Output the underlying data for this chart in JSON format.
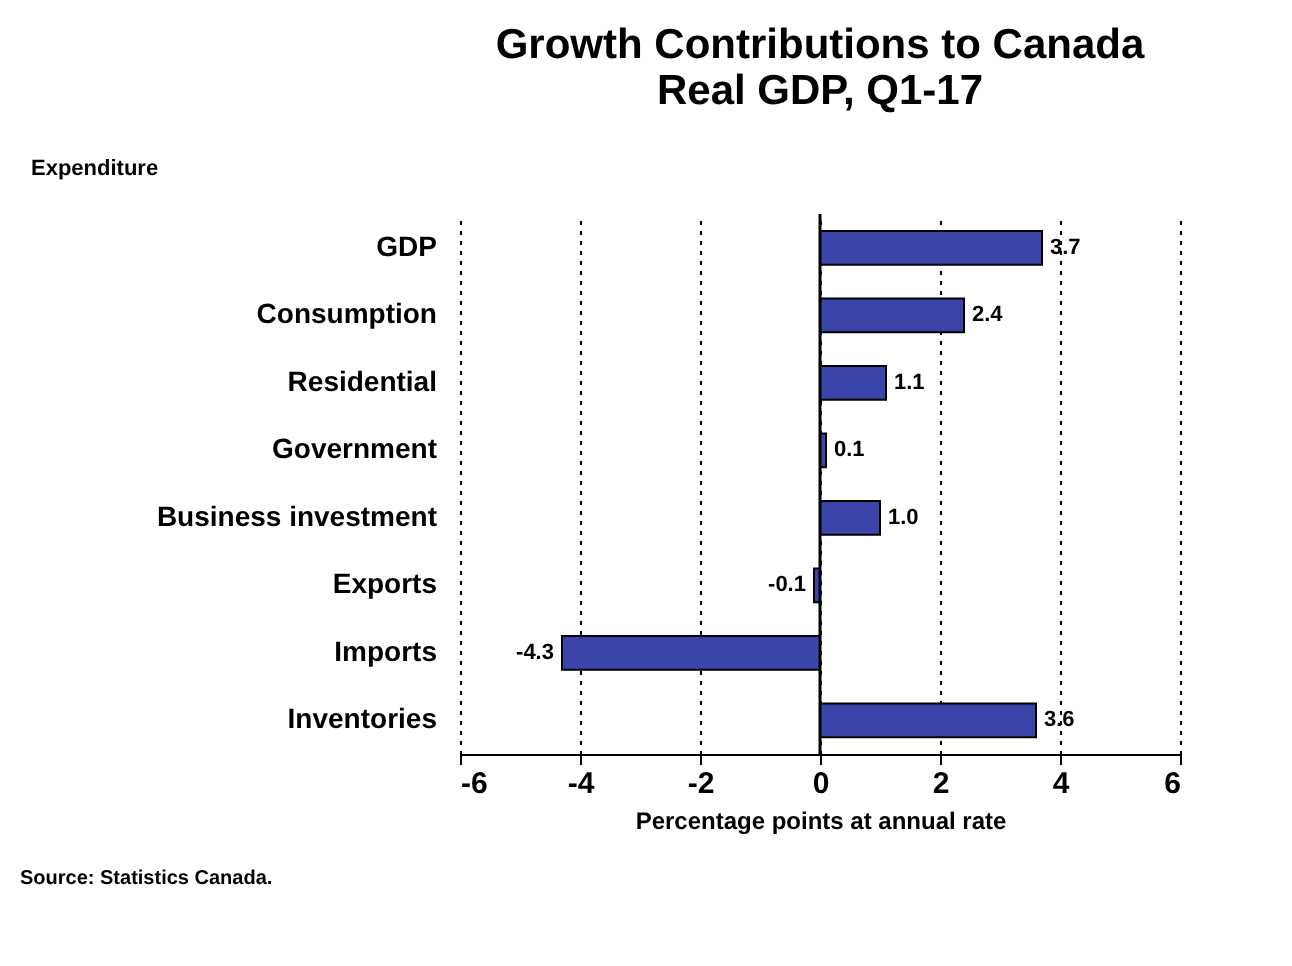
{
  "chart_data": {
    "type": "bar",
    "orientation": "horizontal",
    "title": "Growth Contributions to Canada\nReal GDP, Q1-17",
    "ylabel": "Expenditure",
    "xlabel": "Percentage points at annual rate",
    "categories": [
      "GDP",
      "Consumption",
      "Residential",
      "Government",
      "Business investment",
      "Exports",
      "Imports",
      "Inventories"
    ],
    "values": [
      3.7,
      2.4,
      1.1,
      0.1,
      1.0,
      -0.1,
      -4.3,
      3.6
    ],
    "value_labels": [
      "3.7",
      "2.4",
      "1.1",
      "0.1",
      "1.0",
      "-0.1",
      "-4.3",
      "3.6"
    ],
    "color": "#3b44a8",
    "xlim": [
      -6,
      6
    ],
    "xticks": [
      -6,
      -4,
      -2,
      0,
      2,
      4,
      6
    ],
    "grid": "x",
    "annotations": [
      "Source: Statistics Canada."
    ]
  }
}
